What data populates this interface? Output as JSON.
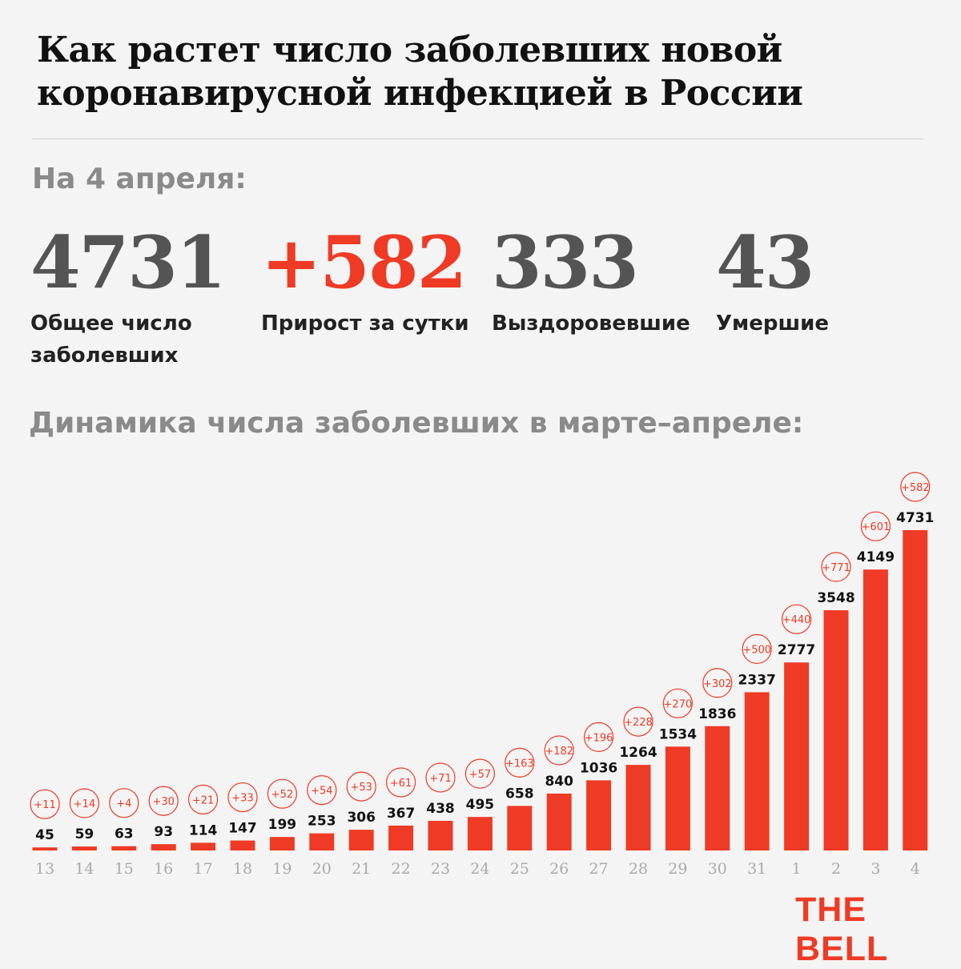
{
  "title": "Как растет число заболевших новой коронавирусной инфекцией в России",
  "date_label": "На 4 апреля:",
  "stats": {
    "total": {
      "value": "4731",
      "label": "Общее число заболевших"
    },
    "increase": {
      "value": "+582",
      "label": "Прирост за сутки"
    },
    "recovered": {
      "value": "333",
      "label": "Выздоровевшие"
    },
    "deaths": {
      "value": "43",
      "label": "Умершие"
    }
  },
  "subtitle": "Динамика числа заболевших в марте–апреле:",
  "logo": "THE BELL",
  "colors": {
    "accent": "#ef3a25",
    "stat_gray": "#545454",
    "muted": "#8a8a8a"
  },
  "chart_data": {
    "type": "bar",
    "categories": [
      "13",
      "14",
      "15",
      "16",
      "17",
      "18",
      "19",
      "20",
      "21",
      "22",
      "23",
      "24",
      "25",
      "26",
      "27",
      "28",
      "29",
      "30",
      "31",
      "1",
      "2",
      "3",
      "4"
    ],
    "values": [
      45,
      59,
      63,
      93,
      114,
      147,
      199,
      253,
      306,
      367,
      438,
      495,
      658,
      840,
      1036,
      1264,
      1534,
      1836,
      2337,
      2777,
      3548,
      4149,
      4731
    ],
    "increments": [
      "+11",
      "+14",
      "+4",
      "+30",
      "+21",
      "+33",
      "+52",
      "+54",
      "+53",
      "+61",
      "+71",
      "+57",
      "+163",
      "+182",
      "+196",
      "+228",
      "+270",
      "+302",
      "+500",
      "+440",
      "+771",
      "+601",
      "+582"
    ],
    "ylim": [
      0,
      4731
    ],
    "grid": false
  }
}
